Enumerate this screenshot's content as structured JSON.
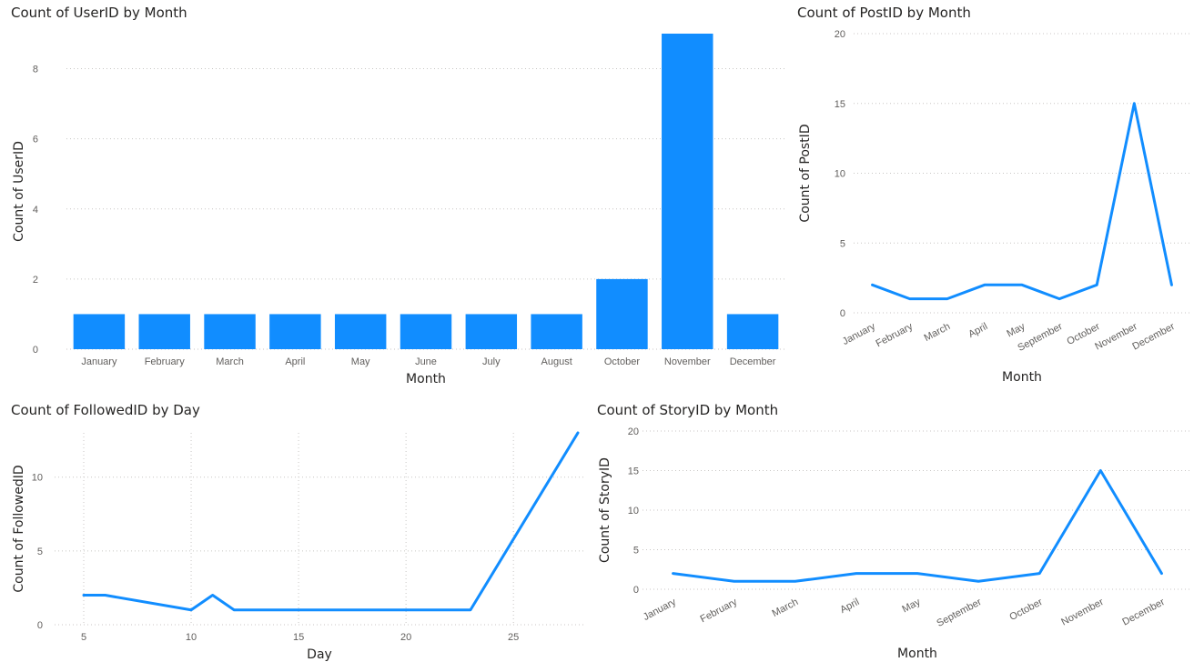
{
  "colors": {
    "series": "#118DFF",
    "text": "#252423",
    "tick": "#605E5C",
    "grid": "#C8C6C4"
  },
  "chart_data": [
    {
      "id": "userid",
      "type": "bar",
      "title": "Count of UserID by Month",
      "xlabel": "Month",
      "ylabel": "Count of UserID",
      "categories": [
        "January",
        "February",
        "March",
        "April",
        "May",
        "June",
        "July",
        "August",
        "October",
        "November",
        "December"
      ],
      "values": [
        1,
        1,
        1,
        1,
        1,
        1,
        1,
        1,
        2,
        9,
        1
      ],
      "ylim": [
        0,
        9
      ],
      "yticks": [
        0,
        2,
        4,
        6,
        8
      ],
      "grid": "horizontal dotted",
      "series_color": "#118DFF"
    },
    {
      "id": "postid",
      "type": "line",
      "title": "Count of PostID by Month",
      "xlabel": "Month",
      "ylabel": "Count of PostID",
      "categories": [
        "January",
        "February",
        "March",
        "April",
        "May",
        "September",
        "October",
        "November",
        "December"
      ],
      "values": [
        2,
        1,
        1,
        2,
        2,
        1,
        2,
        15,
        2
      ],
      "ylim": [
        0,
        20
      ],
      "yticks": [
        0,
        5,
        10,
        15,
        20
      ],
      "grid": "horizontal dotted",
      "series_color": "#118DFF"
    },
    {
      "id": "followedid",
      "type": "line",
      "title": "Count of FollowedID by Day",
      "xlabel": "Day",
      "ylabel": "Count of FollowedID",
      "x": [
        5,
        6,
        10,
        11,
        12,
        23,
        28
      ],
      "values": [
        2,
        2,
        1,
        2,
        1,
        1,
        13
      ],
      "xlim": [
        4.5,
        28
      ],
      "xticks": [
        5,
        10,
        15,
        20,
        25
      ],
      "ylim": [
        0,
        13
      ],
      "yticks": [
        0,
        5,
        10
      ],
      "grid": "both dotted",
      "series_color": "#118DFF"
    },
    {
      "id": "storyid",
      "type": "line",
      "title": "Count of StoryID by Month",
      "xlabel": "Month",
      "ylabel": "Count of StoryID",
      "categories": [
        "January",
        "February",
        "March",
        "April",
        "May",
        "September",
        "October",
        "November",
        "December"
      ],
      "values": [
        2,
        1,
        1,
        2,
        2,
        1,
        2,
        15,
        2
      ],
      "ylim": [
        0,
        20
      ],
      "yticks": [
        0,
        5,
        10,
        15,
        20
      ],
      "grid": "horizontal dotted",
      "series_color": "#118DFF"
    }
  ]
}
